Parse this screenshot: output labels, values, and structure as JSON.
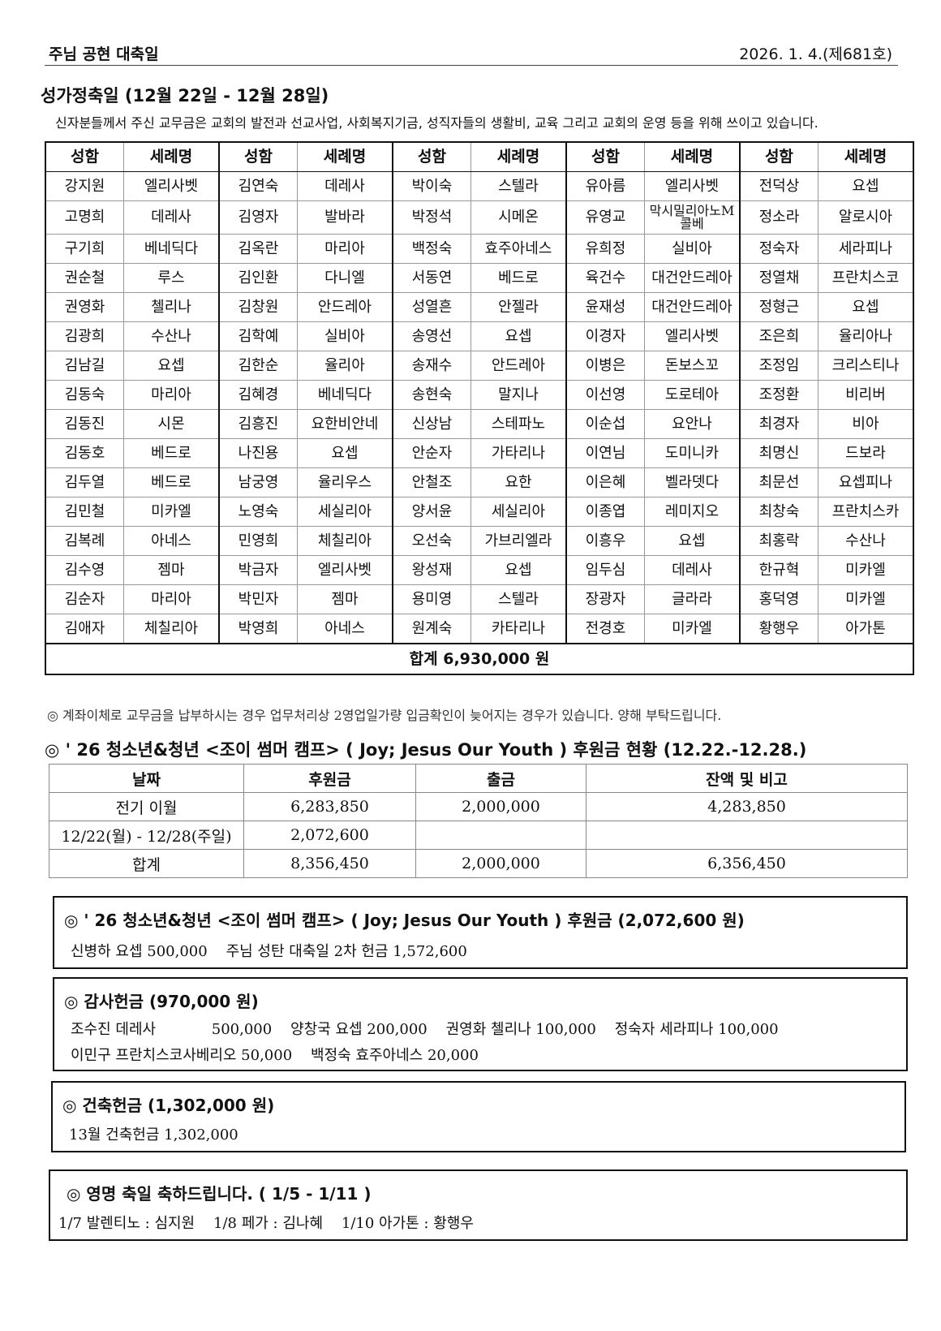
{
  "header": {
    "title": "주님 공현 대축일",
    "date": "2026. 1. 4.(제681호)"
  },
  "section1": {
    "title": "성가정축일 (12월 22일 - 12월 28일)",
    "description": "신자분들께서 주신 교무금은 교회의 발전과 선교사업, 사회복지기금, 성직자들의 생활비, 교육 그리고 교회의 운영 등을 위해 쓰이고 있습니다.",
    "headers": [
      "성함",
      "세례명",
      "성함",
      "세례명",
      "성함",
      "세례명",
      "성함",
      "세례명",
      "성함",
      "세례명"
    ],
    "rows": [
      [
        "강지원",
        "엘리사벳",
        "김연숙",
        "데레사",
        "박이숙",
        "스텔라",
        "유아름",
        "엘리사벳",
        "전덕상",
        "요셉"
      ],
      [
        "고명희",
        "데레사",
        "김영자",
        "발바라",
        "박정석",
        "시메온",
        "유영교",
        "막시밀리아노M콜베",
        "정소라",
        "알로시아"
      ],
      [
        "구기희",
        "베네딕다",
        "김옥란",
        "마리아",
        "백정숙",
        "효주아네스",
        "유희정",
        "실비아",
        "정숙자",
        "세라피나"
      ],
      [
        "권순철",
        "루스",
        "김인환",
        "다니엘",
        "서동연",
        "베드로",
        "육건수",
        "대건안드레아",
        "정열채",
        "프란치스코"
      ],
      [
        "권영화",
        "첼리나",
        "김창원",
        "안드레아",
        "성열흔",
        "안젤라",
        "윤재성",
        "대건안드레아",
        "정형근",
        "요셉"
      ],
      [
        "김광희",
        "수산나",
        "김학예",
        "실비아",
        "송영선",
        "요셉",
        "이경자",
        "엘리사벳",
        "조은희",
        "율리아나"
      ],
      [
        "김남길",
        "요셉",
        "김한순",
        "율리아",
        "송재수",
        "안드레아",
        "이병은",
        "돈보스꼬",
        "조정임",
        "크리스티나"
      ],
      [
        "김동숙",
        "마리아",
        "김혜경",
        "베네딕다",
        "송현숙",
        "말지나",
        "이선영",
        "도로테아",
        "조정환",
        "비리버"
      ],
      [
        "김동진",
        "시몬",
        "김흥진",
        "요한비안네",
        "신상남",
        "스테파노",
        "이순섭",
        "요안나",
        "최경자",
        "비아"
      ],
      [
        "김동호",
        "베드로",
        "나진용",
        "요셉",
        "안순자",
        "가타리나",
        "이연님",
        "도미니카",
        "최명신",
        "드보라"
      ],
      [
        "김두열",
        "베드로",
        "남궁영",
        "율리우스",
        "안철조",
        "요한",
        "이은혜",
        "벨라뎃다",
        "최문선",
        "요셉피나"
      ],
      [
        "김민철",
        "미카엘",
        "노영숙",
        "세실리아",
        "양서윤",
        "세실리아",
        "이종엽",
        "레미지오",
        "최창숙",
        "프란치스카"
      ],
      [
        "김복례",
        "아네스",
        "민영희",
        "체칠리아",
        "오선숙",
        "가브리엘라",
        "이흥우",
        "요셉",
        "최홍락",
        "수산나"
      ],
      [
        "김수영",
        "젬마",
        "박금자",
        "엘리사벳",
        "왕성재",
        "요셉",
        "임두심",
        "데레사",
        "한규혁",
        "미카엘"
      ],
      [
        "김순자",
        "마리아",
        "박민자",
        "젬마",
        "용미영",
        "스텔라",
        "장광자",
        "글라라",
        "홍덕영",
        "미카엘"
      ],
      [
        "김애자",
        "체칠리아",
        "박영희",
        "아네스",
        "원계숙",
        "카타리나",
        "전경호",
        "미카엘",
        "황행우",
        "아가톤"
      ]
    ],
    "total": "합계 6,930,000 원",
    "note": "◎ 계좌이체로 교무금을 납부하시는 경우 업무처리상 2영업일가량 입금확인이 늦어지는 경우가 있습니다. 양해 부탁드립니다."
  },
  "section2": {
    "title": "◎ ' 26 청소년&청년 <조이 썸머 캠프> ( Joy; Jesus Our Youth ) 후원금 현황 (12.22.-12.28.)",
    "headers": [
      "날짜",
      "후원금",
      "출금",
      "잔액 및 비고"
    ],
    "rows": [
      [
        "전기 이월",
        "6,283,850",
        "2,000,000",
        "4,283,850"
      ],
      [
        "12/22(월) - 12/28(주일)",
        "2,072,600",
        "",
        ""
      ],
      [
        "합계",
        "8,356,450",
        "2,000,000",
        "6,356,450"
      ]
    ]
  },
  "box1": {
    "title": "◎ ' 26 청소년&청년 <조이 썸머 캠프> ( Joy; Jesus Our Youth ) 후원금 (2,072,600 원)",
    "line1": "신병하 요셉 500,000    주님 성탄 대축일 2차 헌금 1,572,600"
  },
  "box2": {
    "title": "◎ 감사헌금 (970,000 원)",
    "line1": "조수진 데레사            500,000    양창국 요셉 200,000    권영화 첼리나 100,000    정숙자 세라피나 100,000",
    "line2": "이민구 프란치스코사베리오 50,000    백정숙 효주아네스 20,000"
  },
  "box3": {
    "title": "◎ 건축헌금 (1,302,000 원)",
    "line1": "13월 건축헌금 1,302,000"
  },
  "box4": {
    "title": "◎ 영명 축일 축하드립니다. ( 1/5 - 1/11 )",
    "line1": "1/7 발렌티노 : 심지원    1/8 페가 : 김나혜    1/10 아가톤 : 황행우"
  }
}
